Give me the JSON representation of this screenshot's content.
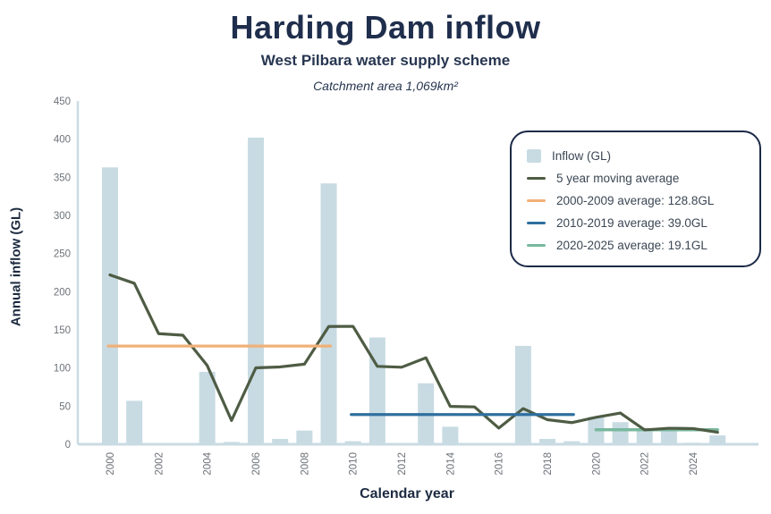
{
  "header": {
    "title": "Harding Dam inflow",
    "subtitle": "West Pilbara water supply scheme",
    "catchment": "Catchment area 1,069km²"
  },
  "axes": {
    "y_label": "Annual inflow (GL)",
    "x_label": "Calendar year"
  },
  "legend": {
    "items": [
      {
        "label": "Inflow (GL)",
        "swatch": "square",
        "color": "#c8dbe3"
      },
      {
        "label": "5 year moving average",
        "swatch": "line",
        "color": "#4e5c44"
      },
      {
        "label": "2000-2009 average: 128.8GL",
        "swatch": "line",
        "color": "#f0b078"
      },
      {
        "label": "2010-2019 average: 39.0GL",
        "swatch": "line",
        "color": "#2e6f9f"
      },
      {
        "label": "2020-2025 average: 19.1GL",
        "swatch": "line",
        "color": "#79b79e"
      }
    ]
  },
  "chart_data": {
    "type": "bar",
    "title": "Harding Dam inflow",
    "subtitle": "West Pilbara water supply scheme",
    "annotation": "Catchment area 1,069km²",
    "xlabel": "Calendar year",
    "ylabel": "Annual inflow (GL)",
    "ylim": [
      0,
      450
    ],
    "y_ticks": [
      0,
      50,
      100,
      150,
      200,
      250,
      300,
      350,
      400,
      450
    ],
    "x_tick_years": [
      2000,
      2002,
      2004,
      2006,
      2008,
      2010,
      2012,
      2014,
      2016,
      2018,
      2020,
      2022,
      2024
    ],
    "grid": false,
    "legend_position": "upper right",
    "years": [
      2000,
      2001,
      2002,
      2003,
      2004,
      2005,
      2006,
      2007,
      2008,
      2009,
      2010,
      2011,
      2012,
      2013,
      2014,
      2015,
      2016,
      2017,
      2018,
      2019,
      2020,
      2021,
      2022,
      2023,
      2024,
      2025
    ],
    "series": [
      {
        "name": "Inflow (GL)",
        "type": "bar",
        "values": [
          363,
          57,
          1,
          0,
          95,
          3,
          402,
          7,
          18,
          342,
          4,
          140,
          1,
          80,
          23,
          1,
          1,
          129,
          7,
          4,
          36,
          29,
          18,
          18,
          2,
          11.6
        ]
      },
      {
        "name": "5 year moving average",
        "type": "line",
        "values": [
          222,
          211,
          145,
          143,
          103.2,
          31.2,
          100.2,
          101.4,
          105,
          154.4,
          154.6,
          102.2,
          101,
          113.4,
          49.6,
          49,
          21.2,
          46.8,
          32.2,
          28.4,
          35.4,
          41,
          18.8,
          21,
          20.6,
          15.7
        ]
      }
    ],
    "averages": [
      {
        "period": "2000-2009",
        "start_year": 2000,
        "end_year": 2009,
        "value": 128.8,
        "color": "#f0b078",
        "label": "2000-2009 average: 128.8GL"
      },
      {
        "period": "2010-2019",
        "start_year": 2010,
        "end_year": 2019,
        "value": 39.0,
        "color": "#2e6f9f",
        "label": "2010-2019 average: 39.0GL"
      },
      {
        "period": "2020-2025",
        "start_year": 2020,
        "end_year": 2025,
        "value": 19.1,
        "color": "#79b79e",
        "label": "2020-2025 average: 19.1GL"
      }
    ],
    "colors": {
      "bar": "#c8dbe3",
      "moving_average": "#4e5c44",
      "axis_line": "#c9dbe3",
      "tick_text": "#6e7278",
      "title_text": "#1f2e4c"
    }
  }
}
